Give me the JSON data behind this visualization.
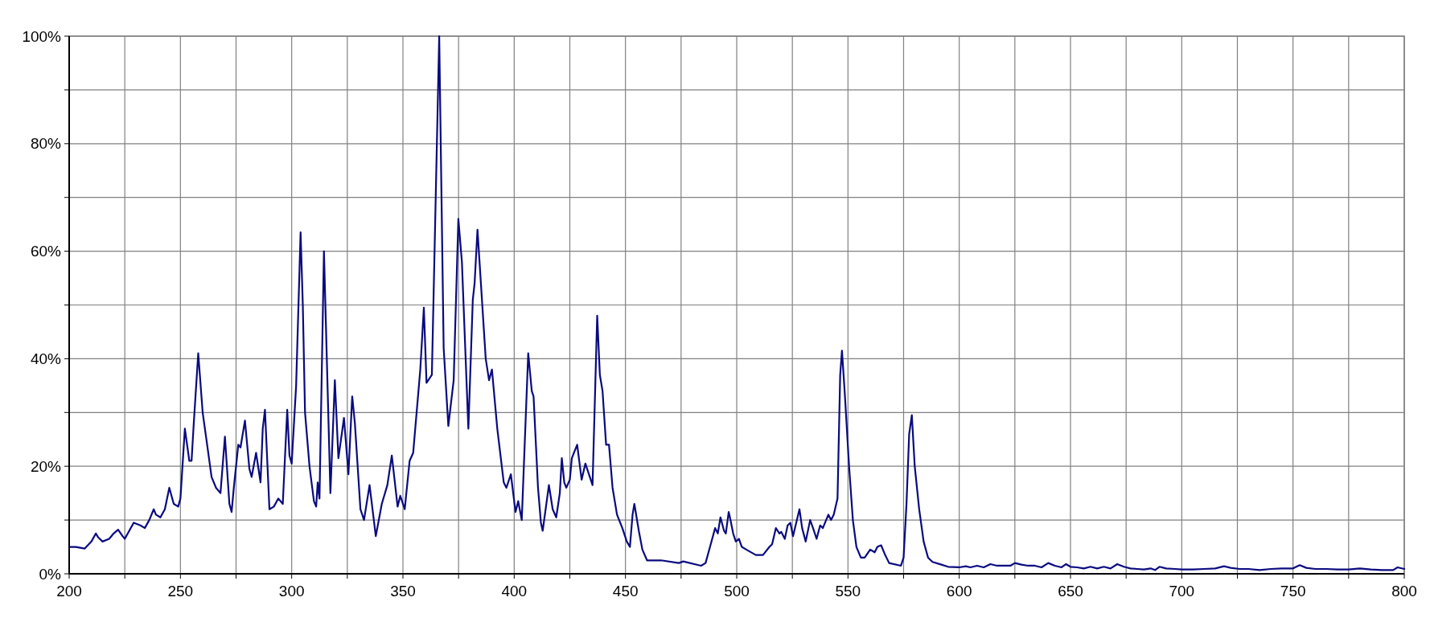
{
  "chart_data": {
    "type": "line",
    "xlim": [
      200,
      800
    ],
    "ylim": [
      0,
      100
    ],
    "xticks": [
      200,
      {
        "value": 225,
        "label": null
      },
      250,
      {
        "value": 275,
        "label": null
      },
      300,
      {
        "value": 325,
        "label": null
      },
      350,
      {
        "value": 375,
        "label": null
      },
      400,
      {
        "value": 425,
        "label": null
      },
      450,
      {
        "value": 475,
        "label": null
      },
      500,
      {
        "value": 525,
        "label": null
      },
      550,
      {
        "value": 575,
        "label": null
      },
      600,
      {
        "value": 625,
        "label": null
      },
      650,
      {
        "value": 675,
        "label": null
      },
      700,
      {
        "value": 725,
        "label": null
      },
      750,
      {
        "value": 775,
        "label": null
      },
      800
    ],
    "yticks": [
      {
        "value": 0,
        "label": "0%"
      },
      {
        "value": 10,
        "label": null
      },
      {
        "value": 20,
        "label": "20%"
      },
      {
        "value": 30,
        "label": null
      },
      {
        "value": 40,
        "label": "40%"
      },
      {
        "value": 50,
        "label": null
      },
      {
        "value": 60,
        "label": "60%"
      },
      {
        "value": 70,
        "label": null
      },
      {
        "value": 80,
        "label": "80%"
      },
      {
        "value": 90,
        "label": null
      },
      {
        "value": 100,
        "label": "100%"
      }
    ],
    "grid": true,
    "marker": "none",
    "line_style": "solid",
    "series": [
      {
        "color": "#0a0a80",
        "x": [
          200,
          203,
          207,
          210,
          212,
          213,
          215,
          218,
          220,
          222,
          224,
          225,
          227,
          229,
          232,
          234,
          236,
          238,
          239,
          241,
          243,
          245,
          247,
          249,
          250,
          252,
          254,
          255,
          256,
          258,
          260,
          262,
          264,
          266,
          268,
          270,
          272,
          273,
          274,
          276,
          277,
          279,
          281,
          282,
          284,
          286,
          287,
          288,
          290,
          292,
          294,
          296,
          298,
          299,
          300,
          302,
          304,
          305,
          306,
          308,
          310,
          311,
          311.7,
          312.5,
          314.5,
          317.4,
          319.4,
          321,
          323.5,
          325.5,
          327.2,
          328.4,
          330.9,
          332.5,
          335,
          337.8,
          340.5,
          343,
          345,
          347.6,
          348.8,
          350.8,
          353,
          354.6,
          357.8,
          359.4,
          360.6,
          363,
          366.3,
          368.3,
          370.4,
          372.8,
          374.9,
          376.5,
          379.4,
          381.4,
          382.2,
          383.5,
          387.2,
          388.7,
          390,
          392.4,
          395.3,
          396.5,
          398.5,
          400.6,
          401.8,
          403.4,
          406.3,
          407.9,
          408.7,
          410.7,
          412,
          412.8,
          415.6,
          417.3,
          418.9,
          420.5,
          421.4,
          422.5,
          423.4,
          425,
          425.9,
          428.3,
          430.3,
          432,
          434,
          435.2,
          437.3,
          438.5,
          439.7,
          441.3,
          442.6,
          444.2,
          446.2,
          448.6,
          450.6,
          452,
          453.2,
          454,
          456,
          457.6,
          459.7,
          466,
          474,
          476,
          484,
          486,
          488,
          490.3,
          491.5,
          492.7,
          494.3,
          495.1,
          496.4,
          497.2,
          498.4,
          499.6,
          501,
          502.3,
          504.3,
          508.6,
          511.8,
          514.7,
          515.9,
          517.6,
          519.2,
          520,
          521.6,
          522.9,
          524.1,
          525.3,
          528.2,
          529.4,
          531,
          533,
          534.3,
          535.9,
          537.5,
          538.7,
          541.2,
          542.4,
          543.6,
          545.3,
          546.5,
          547.3,
          548.5,
          550.5,
          552.2,
          553.8,
          555.8,
          557.5,
          560,
          562,
          563.2,
          564.9,
          566.7,
          568.5,
          573.8,
          575,
          576.3,
          577.5,
          578.7,
          580,
          582,
          584,
          586,
          588,
          592,
          595,
          600,
          603,
          605,
          608,
          611,
          614,
          617,
          620,
          623,
          625,
          628,
          631,
          634,
          637,
          640,
          643,
          646,
          648,
          650,
          653,
          656,
          659,
          662,
          665,
          668,
          671,
          674,
          677,
          680,
          683,
          686,
          688,
          690,
          693,
          697,
          700,
          705,
          710,
          715,
          719,
          722,
          726,
          730,
          735,
          740,
          745,
          750,
          753,
          756,
          760,
          765,
          770,
          775,
          780,
          785,
          790,
          795,
          797,
          800
        ],
        "values": [
          5,
          5,
          4.7,
          6,
          7.5,
          6.8,
          6,
          6.5,
          7.5,
          8.2,
          7,
          6.5,
          8,
          9.5,
          9,
          8.5,
          10,
          12,
          11,
          10.5,
          12,
          16,
          13,
          12.5,
          14,
          27,
          21,
          21,
          28,
          41,
          30,
          24,
          18,
          16,
          15,
          25.5,
          13,
          11.5,
          16,
          24,
          23.5,
          28.5,
          19.5,
          18,
          22.5,
          17,
          27,
          30.5,
          12,
          12.5,
          14,
          13,
          30.5,
          22,
          20.5,
          35,
          63.5,
          50,
          30,
          20,
          13.5,
          12.5,
          17,
          14,
          60,
          15,
          36,
          21.5,
          29,
          18.5,
          33,
          28,
          12,
          10,
          16.5,
          7,
          13,
          16.5,
          22,
          12.5,
          14.5,
          12,
          21,
          22.5,
          38,
          49.5,
          35.5,
          37,
          100,
          42,
          27.5,
          36,
          66,
          58,
          27,
          51,
          54,
          64,
          40,
          36,
          38,
          27,
          17,
          16,
          18.5,
          11.5,
          13.5,
          10,
          41,
          34,
          33,
          16,
          9.5,
          8,
          16.5,
          12,
          10.5,
          15,
          21.5,
          17,
          16,
          17.5,
          21.5,
          24,
          17.5,
          20.5,
          18,
          16.5,
          48,
          37,
          34,
          24,
          24,
          16,
          11,
          8.5,
          6,
          5,
          11,
          13,
          8,
          4.5,
          2.5,
          2.5,
          2,
          2.3,
          1.5,
          2,
          5,
          8.5,
          7.5,
          10.5,
          8,
          7.5,
          11.5,
          10,
          7.5,
          6,
          6.5,
          5,
          4.5,
          3.5,
          3.5,
          5,
          5.5,
          8.5,
          7.5,
          7.8,
          6.5,
          9,
          9.5,
          7,
          12,
          8.5,
          6,
          10,
          8.5,
          6.5,
          9,
          8.5,
          11,
          10,
          11,
          14,
          37,
          41.5,
          34,
          20,
          10,
          5,
          3,
          3,
          4.5,
          4,
          5,
          5.3,
          3.5,
          2,
          1.5,
          3,
          13,
          26,
          29.5,
          20,
          12,
          6,
          3,
          2.2,
          1.7,
          1.3,
          1.2,
          1.4,
          1.2,
          1.5,
          1.2,
          1.8,
          1.5,
          1.5,
          1.5,
          2,
          1.7,
          1.5,
          1.5,
          1.2,
          2,
          1.5,
          1.2,
          1.8,
          1.3,
          1.2,
          1,
          1.3,
          1,
          1.3,
          1,
          1.8,
          1.3,
          1,
          0.9,
          0.8,
          1,
          0.7,
          1.3,
          1,
          0.9,
          0.8,
          0.8,
          0.9,
          1,
          1.4,
          1.1,
          0.9,
          0.9,
          0.7,
          0.9,
          1,
          1,
          1.6,
          1.1,
          0.9,
          0.9,
          0.8,
          0.8,
          1,
          0.8,
          0.7,
          0.7,
          1.2,
          0.9
        ]
      }
    ]
  }
}
